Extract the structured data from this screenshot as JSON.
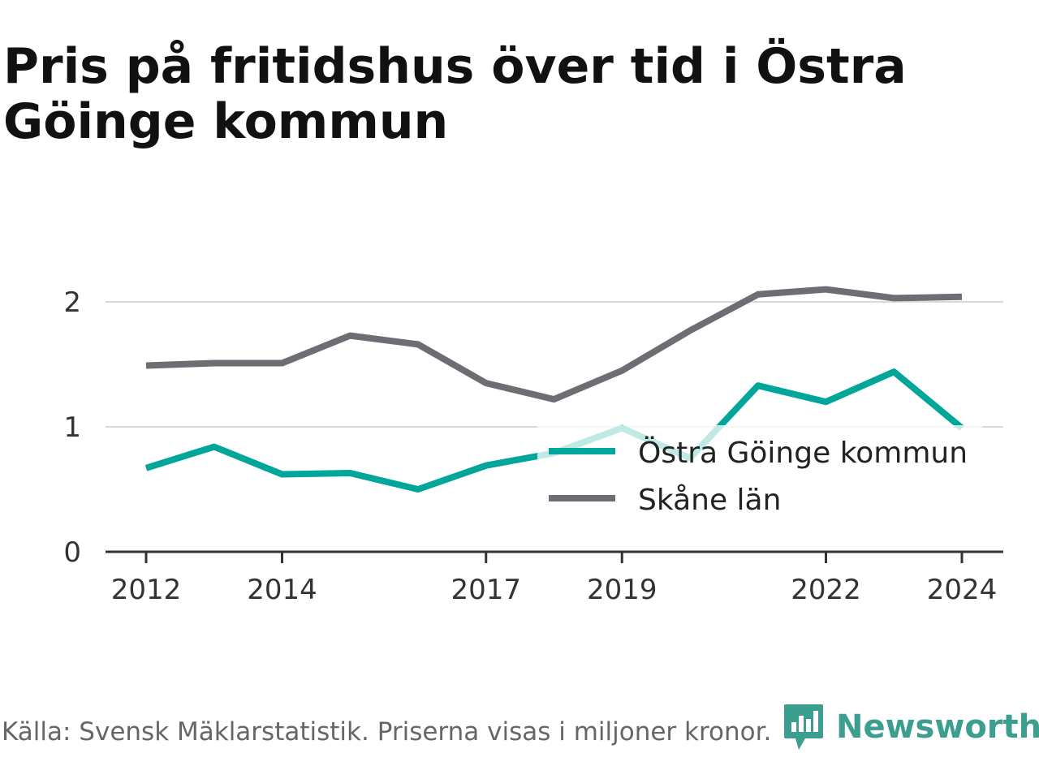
{
  "title": "Pris på fritidshus över tid i Östra Göinge kommun",
  "source": "Källa: Svensk Mäklarstatistik. Priserna visas i miljoner kronor.",
  "brand": "Newsworthy",
  "colors": {
    "series_1": "#00a699",
    "series_2": "#6e6d73",
    "grid": "#d9d9d9",
    "axis": "#333333",
    "brand": "#3b9e8e"
  },
  "chart_data": {
    "type": "line",
    "x": [
      2012,
      2013,
      2014,
      2015,
      2016,
      2017,
      2018,
      2019,
      2020,
      2021,
      2022,
      2023,
      2024
    ],
    "x_tick_labels": [
      "2012",
      "2014",
      "2017",
      "2019",
      "2022",
      "2024"
    ],
    "y_ticks": [
      0,
      1,
      2
    ],
    "y_tick_labels": [
      "0",
      "1",
      "2"
    ],
    "ylim": [
      0,
      2.2
    ],
    "grid": true,
    "legend_position": "bottom-right",
    "series": [
      {
        "name": "Östra Göinge kommun",
        "values": [
          0.67,
          0.84,
          0.62,
          0.63,
          0.5,
          0.69,
          0.79,
          0.99,
          0.75,
          1.33,
          1.2,
          1.44,
          0.99
        ]
      },
      {
        "name": "Skåne län",
        "values": [
          1.49,
          1.51,
          1.51,
          1.73,
          1.66,
          1.35,
          1.22,
          1.45,
          1.77,
          2.06,
          2.1,
          2.03,
          2.04
        ]
      }
    ]
  }
}
